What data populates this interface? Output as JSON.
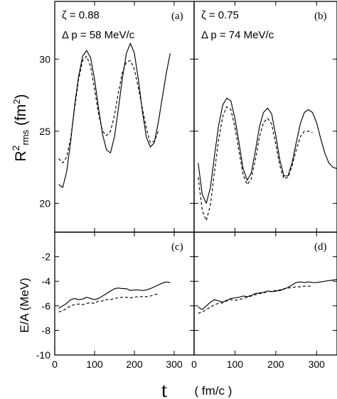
{
  "chart_data": [
    {
      "type": "line",
      "panel_label": "(a)",
      "annotation": [
        "ζ = 0.88",
        "Δ p = 58 MeV/c"
      ],
      "xlim": [
        0,
        350
      ],
      "ylim": [
        18,
        34
      ],
      "y_ticks": [
        20,
        25,
        30
      ],
      "series": [
        {
          "style": "solid",
          "x": [
            10,
            20,
            30,
            40,
            50,
            60,
            70,
            80,
            90,
            100,
            110,
            120,
            130,
            140,
            150,
            160,
            170,
            180,
            190,
            200,
            210,
            220,
            230,
            240,
            250,
            260,
            270,
            280,
            290
          ],
          "y": [
            21.3,
            21.1,
            22.2,
            24.3,
            26.8,
            28.8,
            30.2,
            30.6,
            30.1,
            28.6,
            26.6,
            24.8,
            23.7,
            23.5,
            24.6,
            26.6,
            28.7,
            30.4,
            31.1,
            30.4,
            28.6,
            26.4,
            24.6,
            23.9,
            24.2,
            25.6,
            27.3,
            29.0,
            30.4
          ]
        },
        {
          "style": "dashed",
          "x": [
            10,
            20,
            30,
            40,
            50,
            60,
            70,
            80,
            90,
            100,
            110,
            120,
            130,
            140,
            150,
            160,
            170,
            180,
            190,
            200,
            210,
            220,
            230,
            240,
            250,
            260
          ],
          "y": [
            23.1,
            22.8,
            23.2,
            24.5,
            26.6,
            28.6,
            29.9,
            30.2,
            29.5,
            27.9,
            26.2,
            25.0,
            24.7,
            25.0,
            26.1,
            27.7,
            29.1,
            29.8,
            29.9,
            29.3,
            28.0,
            26.6,
            25.2,
            24.2,
            24.3,
            25.0
          ]
        }
      ]
    },
    {
      "type": "line",
      "panel_label": "(b)",
      "annotation": [
        "ζ = 0.75",
        "Δ p = 74 MeV/c"
      ],
      "xlim": [
        0,
        350
      ],
      "ylim": [
        18,
        34
      ],
      "y_ticks": [
        20,
        25,
        30
      ],
      "series": [
        {
          "style": "solid",
          "x": [
            10,
            20,
            30,
            40,
            50,
            60,
            70,
            80,
            90,
            100,
            110,
            120,
            130,
            140,
            150,
            160,
            170,
            180,
            190,
            200,
            210,
            220,
            230,
            240,
            250,
            260,
            270,
            280,
            290,
            300,
            310,
            320,
            330,
            340,
            350
          ],
          "y": [
            22.8,
            20.6,
            20.0,
            21.1,
            23.3,
            25.4,
            26.8,
            27.3,
            27.1,
            25.9,
            24.2,
            22.4,
            21.6,
            22.1,
            23.6,
            25.3,
            26.3,
            26.6,
            26.2,
            24.7,
            23.0,
            21.9,
            21.9,
            22.8,
            24.2,
            25.5,
            26.3,
            26.5,
            26.3,
            25.6,
            24.5,
            23.5,
            22.8,
            22.5,
            22.4
          ]
        },
        {
          "style": "dashed",
          "x": [
            10,
            20,
            30,
            40,
            50,
            60,
            70,
            80,
            90,
            100,
            110,
            120,
            130,
            140,
            150,
            160,
            170,
            180,
            190,
            200,
            210,
            220,
            230,
            240,
            250,
            260,
            270,
            280,
            290
          ],
          "y": [
            21.8,
            19.5,
            18.8,
            19.9,
            22.2,
            24.4,
            26.0,
            26.7,
            26.5,
            25.3,
            23.6,
            22.0,
            21.3,
            21.7,
            23.0,
            24.6,
            25.6,
            25.9,
            25.5,
            24.1,
            22.6,
            21.7,
            21.8,
            22.6,
            23.7,
            24.6,
            25.0,
            25.0,
            24.9
          ]
        }
      ]
    },
    {
      "type": "line",
      "panel_label": "(c)",
      "xlim": [
        0,
        350
      ],
      "ylim": [
        -10,
        0
      ],
      "y_ticks": [
        -10,
        -8,
        -6,
        -4,
        -2
      ],
      "series": [
        {
          "style": "solid",
          "x": [
            10,
            20,
            30,
            40,
            50,
            60,
            70,
            80,
            90,
            100,
            110,
            120,
            130,
            140,
            150,
            160,
            170,
            180,
            190,
            200,
            210,
            220,
            230,
            240,
            250,
            260,
            270,
            280,
            290
          ],
          "y": [
            -6.2,
            -6.0,
            -5.8,
            -5.5,
            -5.4,
            -5.5,
            -5.45,
            -5.3,
            -5.4,
            -5.5,
            -5.4,
            -5.2,
            -5.0,
            -4.8,
            -4.6,
            -4.55,
            -4.6,
            -4.6,
            -4.75,
            -4.7,
            -4.7,
            -4.75,
            -4.7,
            -4.6,
            -4.45,
            -4.3,
            -4.15,
            -4.05,
            -4.1
          ]
        },
        {
          "style": "dashed",
          "x": [
            10,
            20,
            30,
            40,
            50,
            60,
            70,
            80,
            90,
            100,
            110,
            120,
            130,
            140,
            150,
            160,
            170,
            180,
            190,
            200,
            210,
            220,
            230,
            240,
            250,
            260
          ],
          "y": [
            -6.5,
            -6.4,
            -6.2,
            -6.0,
            -5.9,
            -5.85,
            -5.9,
            -5.8,
            -5.75,
            -5.8,
            -5.6,
            -5.6,
            -5.5,
            -5.5,
            -5.4,
            -5.35,
            -5.3,
            -5.3,
            -5.35,
            -5.3,
            -5.25,
            -5.25,
            -5.25,
            -5.2,
            -5.1,
            -5.0
          ]
        }
      ]
    },
    {
      "type": "line",
      "panel_label": "(d)",
      "xlim": [
        0,
        350
      ],
      "ylim": [
        -10,
        0
      ],
      "y_ticks": [
        -10,
        -8,
        -6,
        -4,
        -2
      ],
      "series": [
        {
          "style": "solid",
          "x": [
            10,
            20,
            30,
            40,
            50,
            60,
            70,
            80,
            90,
            100,
            110,
            120,
            130,
            140,
            150,
            160,
            170,
            180,
            190,
            200,
            210,
            220,
            230,
            240,
            250,
            260,
            270,
            280,
            290,
            300,
            310,
            320,
            330,
            340,
            350
          ],
          "y": [
            -6.1,
            -6.3,
            -6.0,
            -5.7,
            -5.5,
            -5.6,
            -5.7,
            -5.55,
            -5.4,
            -5.35,
            -5.3,
            -5.2,
            -5.25,
            -5.15,
            -5.0,
            -4.95,
            -4.9,
            -4.8,
            -4.85,
            -4.8,
            -4.75,
            -4.65,
            -4.5,
            -4.3,
            -4.1,
            -4.05,
            -4.1,
            -4.05,
            -4.1,
            -4.1,
            -4.05,
            -4.0,
            -3.95,
            -3.9,
            -3.85
          ]
        },
        {
          "style": "dashed",
          "x": [
            10,
            20,
            30,
            40,
            50,
            60,
            70,
            80,
            90,
            100,
            110,
            120,
            130,
            140,
            150,
            160,
            170,
            180,
            190,
            200,
            210,
            220,
            230,
            240,
            250,
            260,
            270,
            280,
            290
          ],
          "y": [
            -6.6,
            -6.5,
            -6.3,
            -6.1,
            -5.9,
            -5.8,
            -5.75,
            -5.6,
            -5.5,
            -5.55,
            -5.5,
            -5.4,
            -5.3,
            -5.2,
            -5.1,
            -5.0,
            -4.95,
            -4.85,
            -4.8,
            -4.75,
            -4.7,
            -4.6,
            -4.55,
            -4.5,
            -4.45,
            -4.45,
            -4.4,
            -4.4,
            -4.4
          ]
        }
      ]
    }
  ],
  "axes": {
    "x_ticks": [
      0,
      100,
      200,
      300
    ],
    "xlabel_symbol": "t",
    "xlabel_unit": "( fm/c )",
    "ylabel_top_main": "R",
    "ylabel_top_sup": "2",
    "ylabel_top_sub": "rms",
    "ylabel_top_unit_open": " (fm",
    "ylabel_top_unit_sup": "2",
    "ylabel_top_unit_close": ")",
    "ylabel_bottom": "E/A (MeV)"
  }
}
